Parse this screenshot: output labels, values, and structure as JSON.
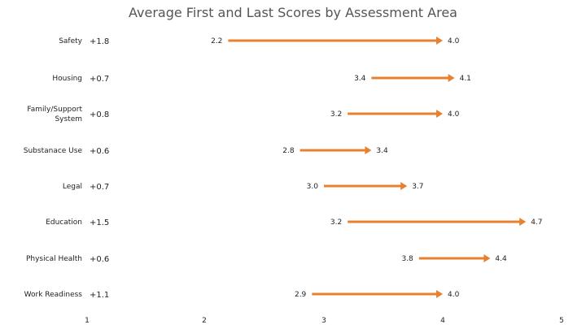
{
  "chart_data": {
    "type": "dumbbell-arrow",
    "title": "Average First and Last Scores by Assessment Area",
    "xlabel": "",
    "ylabel": "",
    "xlim": [
      1,
      5
    ],
    "xticks": [
      "1",
      "2",
      "3",
      "4",
      "5"
    ],
    "grid": false,
    "arrow_color": "#E8812F",
    "categories": [
      {
        "label": [
          "Safety"
        ],
        "change": "+1.8",
        "first": 2.2,
        "last": 4.0,
        "first_label": "2.2",
        "last_label": "4.0"
      },
      {
        "label": [
          "Housing"
        ],
        "change": "+0.7",
        "first": 3.4,
        "last": 4.1,
        "first_label": "3.4",
        "last_label": "4.1"
      },
      {
        "label": [
          "Family/Support",
          "System"
        ],
        "change": "+0.8",
        "first": 3.2,
        "last": 4.0,
        "first_label": "3.2",
        "last_label": "4.0"
      },
      {
        "label": [
          "Substanace Use"
        ],
        "change": "+0.6",
        "first": 2.8,
        "last": 3.4,
        "first_label": "2.8",
        "last_label": "3.4"
      },
      {
        "label": [
          "Legal"
        ],
        "change": "+0.7",
        "first": 3.0,
        "last": 3.7,
        "first_label": "3.0",
        "last_label": "3.7"
      },
      {
        "label": [
          "Education"
        ],
        "change": "+1.5",
        "first": 3.2,
        "last": 4.7,
        "first_label": "3.2",
        "last_label": "4.7"
      },
      {
        "label": [
          "Physical Health"
        ],
        "change": "+0.6",
        "first": 3.8,
        "last": 4.4,
        "first_label": "3.8",
        "last_label": "4.4"
      },
      {
        "label": [
          "Work Readiness"
        ],
        "change": "+1.1",
        "first": 2.9,
        "last": 4.0,
        "first_label": "2.9",
        "last_label": "4.0"
      }
    ]
  }
}
